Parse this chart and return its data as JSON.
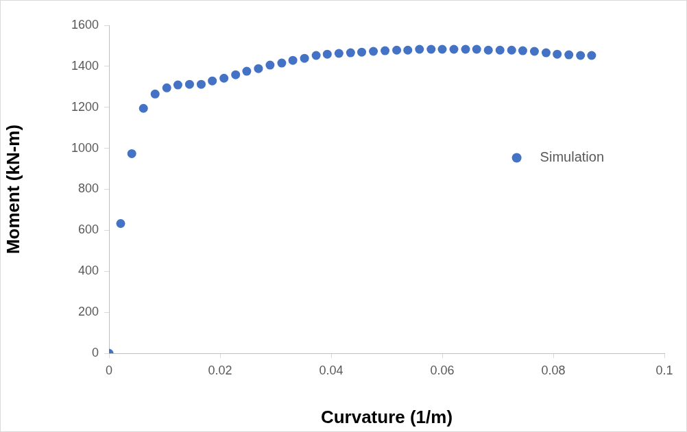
{
  "chart_data": {
    "type": "scatter",
    "xlabel": "Curvature (1/m)",
    "ylabel": "Moment (kN-m)",
    "xlim": [
      0,
      0.1
    ],
    "xticks": [
      0,
      0.02,
      0.04,
      0.06,
      0.08,
      0.1
    ],
    "ylim": [
      0,
      1600
    ],
    "yticks": [
      0,
      200,
      400,
      600,
      800,
      1000,
      1200,
      1400,
      1600
    ],
    "grid": false,
    "legend": "right",
    "marker": "circle",
    "series": [
      {
        "name": "Simulation",
        "color": "#4472c4",
        "x": [
          0,
          0.0021,
          0.0041,
          0.0062,
          0.0083,
          0.0104,
          0.0124,
          0.0145,
          0.0166,
          0.0186,
          0.0207,
          0.0228,
          0.0248,
          0.0269,
          0.029,
          0.0311,
          0.0331,
          0.0352,
          0.0373,
          0.0393,
          0.0414,
          0.0435,
          0.0455,
          0.0476,
          0.0497,
          0.0518,
          0.0538,
          0.0559,
          0.058,
          0.06,
          0.0621,
          0.0642,
          0.0662,
          0.0683,
          0.0704,
          0.0725,
          0.0745,
          0.0766,
          0.0787,
          0.0807,
          0.0828,
          0.0849,
          0.0869
        ],
        "values": [
          0,
          633,
          974,
          1195,
          1265,
          1295,
          1309,
          1312,
          1312,
          1329,
          1342,
          1359,
          1376,
          1389,
          1406,
          1416,
          1429,
          1439,
          1453,
          1459,
          1463,
          1466,
          1469,
          1473,
          1476,
          1479,
          1479,
          1483,
          1483,
          1483,
          1483,
          1483,
          1483,
          1479,
          1479,
          1479,
          1476,
          1473,
          1466,
          1459,
          1456,
          1453,
          1453
        ]
      }
    ]
  }
}
